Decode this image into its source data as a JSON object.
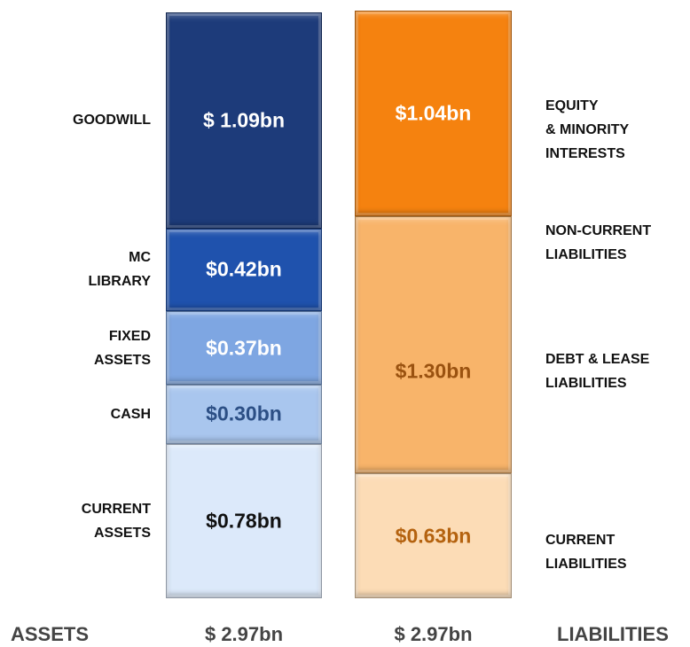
{
  "chart_data": {
    "type": "balance_stack",
    "categories": [
      "ASSETS",
      "LIABILITIES"
    ],
    "totals": [
      2.97,
      2.97
    ],
    "total_labels": [
      "$ 2.97bn",
      "$ 2.97bn"
    ],
    "stacks": [
      {
        "side": "left",
        "segments": [
          {
            "value": 0.78,
            "value_label": "$0.78bn",
            "color": "#dce9fa",
            "label_color": "#111111",
            "labels": [
              [
                "CURRENT",
                "ASSETS"
              ]
            ]
          },
          {
            "value": 0.3,
            "value_label": "$0.30bn",
            "color": "#a9c6ee",
            "label_color": "#2c4f85",
            "labels": [
              [
                "CASH"
              ]
            ]
          },
          {
            "value": 0.37,
            "value_label": "$0.37bn",
            "color": "#7ea6e2",
            "label_color": "#ffffff",
            "labels": [
              [
                "FIXED",
                "ASSETS"
              ]
            ]
          },
          {
            "value": 0.42,
            "value_label": "$0.42bn",
            "color": "#1f52ad",
            "label_color": "#ffffff",
            "labels": [
              [
                "MC",
                "LIBRARY"
              ]
            ]
          },
          {
            "value": 1.09,
            "value_label": "$ 1.09bn",
            "color": "#1d3b7a",
            "label_color": "#ffffff",
            "labels": [
              [
                "GOODWILL"
              ]
            ]
          }
        ]
      },
      {
        "side": "right",
        "segments": [
          {
            "value": 0.63,
            "value_label": "$0.63bn",
            "color": "#fcdcb6",
            "label_color": "#b4620f",
            "labels": [
              [
                "CURRENT",
                "LIABILITIES"
              ]
            ]
          },
          {
            "value": 1.3,
            "value_label": "$1.30bn",
            "color": "#f8b46a",
            "label_color": "#9a5210",
            "labels": [
              [
                "NON-CURRENT",
                "LIABILITIES"
              ],
              [
                "DEBT & LEASE",
                "LIABILITIES"
              ]
            ]
          },
          {
            "value": 1.04,
            "value_label": "$1.04bn",
            "color": "#f5820f",
            "label_color": "#ffffff",
            "labels": [
              [
                "EQUITY",
                "& MINORITY",
                "INTERESTS"
              ]
            ]
          }
        ]
      }
    ]
  }
}
